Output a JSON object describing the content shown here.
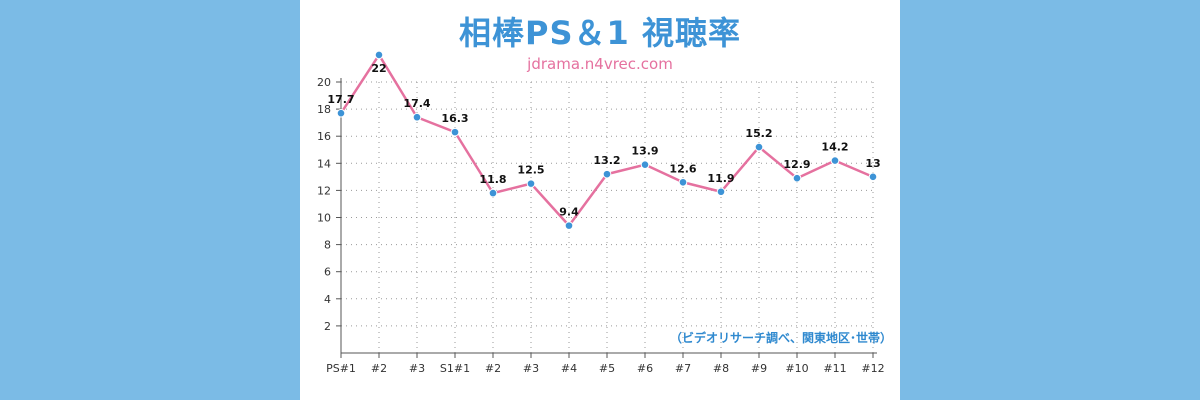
{
  "chart_data": {
    "type": "line",
    "title": "相棒PS＆1 視聴率",
    "subtitle": "jdrama.n4vrec.com",
    "note": "（ビデオリサーチ調べ、関東地区･世帯）",
    "categories": [
      "PS#1",
      "#2",
      "#3",
      "S1#1",
      "#2",
      "#3",
      "#4",
      "#5",
      "#6",
      "#7",
      "#8",
      "#9",
      "#10",
      "#11",
      "#12"
    ],
    "series": [
      {
        "values": [
          17.7,
          22,
          17.4,
          16.3,
          11.8,
          12.5,
          9.4,
          13.2,
          13.9,
          12.6,
          11.9,
          15.2,
          12.9,
          14.2,
          13
        ]
      }
    ],
    "y_ticks": [
      2,
      4,
      6,
      8,
      10,
      12,
      14,
      16,
      18,
      20
    ],
    "ylim": [
      0,
      20
    ],
    "grid": true,
    "colors": {
      "line": "#e5719f",
      "marker": "#3d93d6",
      "title": "#3d93d6",
      "subtitle": "#e5719f",
      "note": "#2f89cf",
      "background": "#7bbbe6"
    }
  }
}
